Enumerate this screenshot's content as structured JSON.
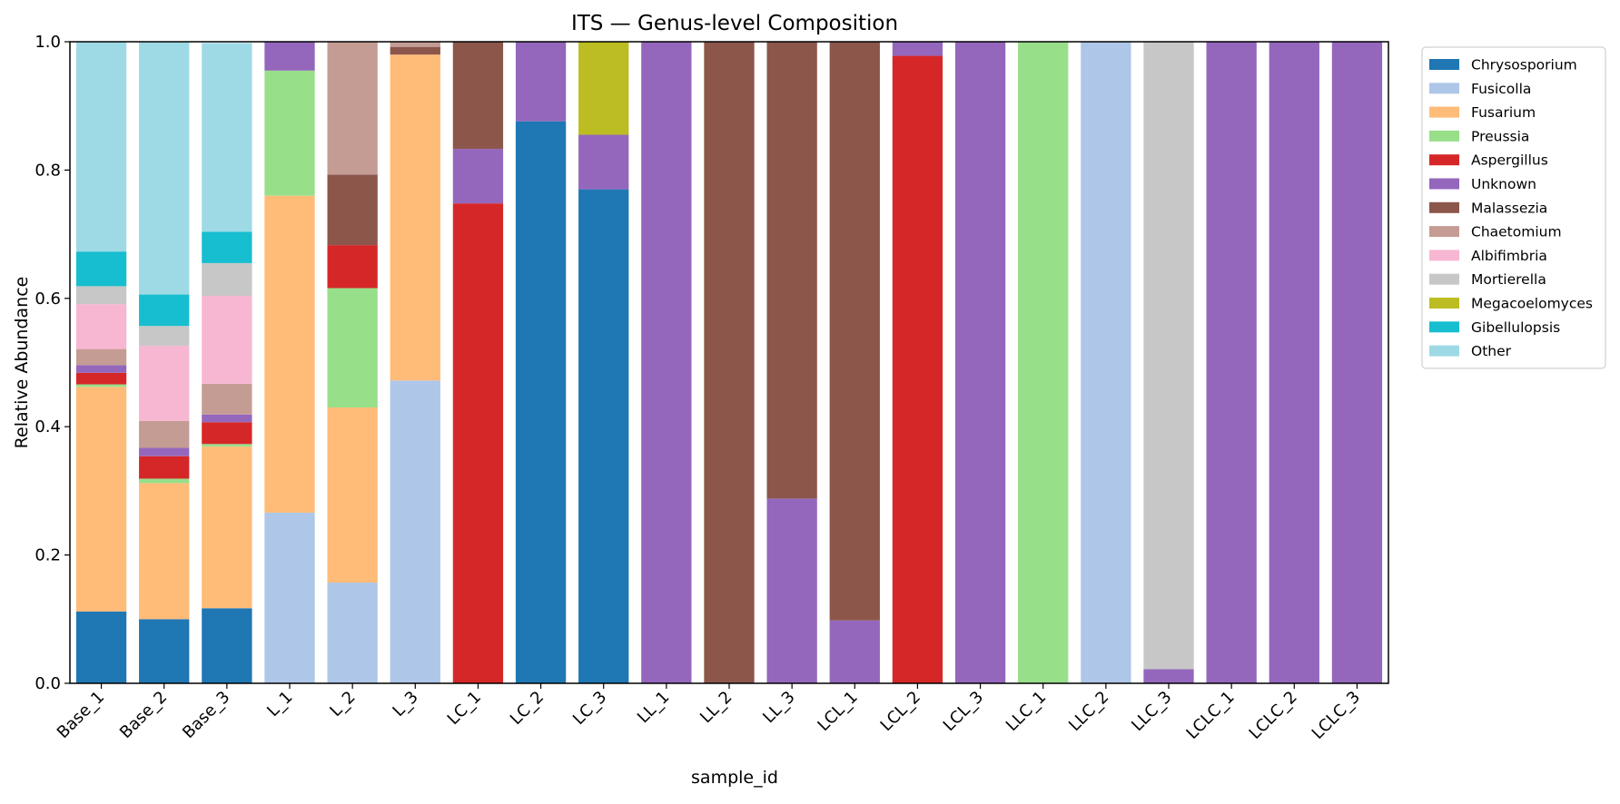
{
  "chart_data": {
    "type": "bar",
    "stacked": true,
    "title": "ITS — Genus-level Composition",
    "xlabel": "sample_id",
    "ylabel": "Relative Abundance",
    "ylim": [
      0,
      1
    ],
    "yticks": [
      "0.0",
      "0.2",
      "0.4",
      "0.6",
      "0.8",
      "1.0"
    ],
    "grid": false,
    "legend_position": "outside-right-top",
    "categories": [
      "Base_1",
      "Base_2",
      "Base_3",
      "L_1",
      "L_2",
      "L_3",
      "LC_1",
      "LC_2",
      "LC_3",
      "LL_1",
      "LL_2",
      "LL_3",
      "LCL_1",
      "LCL_2",
      "LCL_3",
      "LLC_1",
      "LLC_2",
      "LLC_3",
      "LCLC_1",
      "LCLC_2",
      "LCLC_3"
    ],
    "series": [
      {
        "name": "Chrysosporium",
        "color": "#1f77b4",
        "values": [
          0.112,
          0.1,
          0.117,
          0,
          0,
          0,
          0,
          0.876,
          0.77,
          0,
          0,
          0,
          0,
          0,
          0,
          0,
          0,
          0,
          0,
          0,
          0
        ]
      },
      {
        "name": "Fusicolla",
        "color": "#aec7e8",
        "values": [
          0,
          0,
          0,
          0.266,
          0.157,
          0.472,
          0,
          0,
          0,
          0,
          0,
          0,
          0,
          0,
          0,
          0,
          1.0,
          0,
          0,
          0,
          0
        ]
      },
      {
        "name": "Fusarium",
        "color": "#ffbb78",
        "values": [
          0.35,
          0.212,
          0.252,
          0.494,
          0.273,
          0.508,
          0,
          0,
          0,
          0,
          0,
          0,
          0,
          0,
          0,
          0,
          0,
          0,
          0,
          0,
          0
        ]
      },
      {
        "name": "Preussia",
        "color": "#98df8a",
        "values": [
          0.004,
          0.007,
          0.004,
          0.195,
          0.186,
          0,
          0,
          0,
          0,
          0,
          0,
          0,
          0,
          0,
          0,
          1.0,
          0,
          0,
          0,
          0,
          0
        ]
      },
      {
        "name": "Aspergillus",
        "color": "#d62728",
        "values": [
          0.018,
          0.035,
          0.034,
          0,
          0.067,
          0,
          0.748,
          0,
          0,
          0,
          0,
          0,
          0,
          0.978,
          0,
          0,
          0,
          0,
          0,
          0,
          0
        ]
      },
      {
        "name": "Unknown",
        "color": "#9467bd",
        "values": [
          0.012,
          0.013,
          0.012,
          0.045,
          0,
          0,
          0.085,
          0.124,
          0.085,
          1.0,
          0,
          0.288,
          0.098,
          0.022,
          1.0,
          0,
          0,
          0.022,
          1.0,
          1.0,
          1.0
        ]
      },
      {
        "name": "Malassezia",
        "color": "#8c564b",
        "values": [
          0,
          0,
          0,
          0,
          0.11,
          0.012,
          0.167,
          0,
          0,
          0,
          1.0,
          0.712,
          0.902,
          0,
          0,
          0,
          0,
          0,
          0,
          0,
          0
        ]
      },
      {
        "name": "Chaetomium",
        "color": "#c49c94",
        "values": [
          0.025,
          0.042,
          0.048,
          0,
          0.207,
          0.008,
          0,
          0,
          0,
          0,
          0,
          0,
          0,
          0,
          0,
          0,
          0,
          0,
          0,
          0,
          0
        ]
      },
      {
        "name": "Albifimbria",
        "color": "#f7b6d2",
        "values": [
          0.07,
          0.117,
          0.137,
          0,
          0,
          0,
          0,
          0,
          0,
          0,
          0,
          0,
          0,
          0,
          0,
          0,
          0,
          0,
          0,
          0,
          0
        ]
      },
      {
        "name": "Mortierella",
        "color": "#c7c7c7",
        "values": [
          0.028,
          0.031,
          0.051,
          0,
          0,
          0,
          0,
          0,
          0,
          0,
          0,
          0,
          0,
          0,
          0,
          0,
          0,
          0.978,
          0,
          0,
          0
        ]
      },
      {
        "name": "Megacoelomyces",
        "color": "#bcbd22",
        "values": [
          0,
          0,
          0,
          0,
          0,
          0,
          0,
          0,
          0.145,
          0,
          0,
          0,
          0,
          0,
          0,
          0,
          0,
          0,
          0,
          0,
          0
        ]
      },
      {
        "name": "Gibellulopsis",
        "color": "#17becf",
        "values": [
          0.054,
          0.049,
          0.049,
          0,
          0,
          0,
          0,
          0,
          0,
          0,
          0,
          0,
          0,
          0,
          0,
          0,
          0,
          0,
          0,
          0,
          0
        ]
      },
      {
        "name": "Other",
        "color": "#9edae5",
        "values": [
          0.327,
          0.394,
          0.294,
          0,
          0,
          0,
          0,
          0,
          0,
          0,
          0,
          0,
          0,
          0,
          0,
          0,
          0,
          0,
          0,
          0,
          0
        ]
      }
    ]
  }
}
